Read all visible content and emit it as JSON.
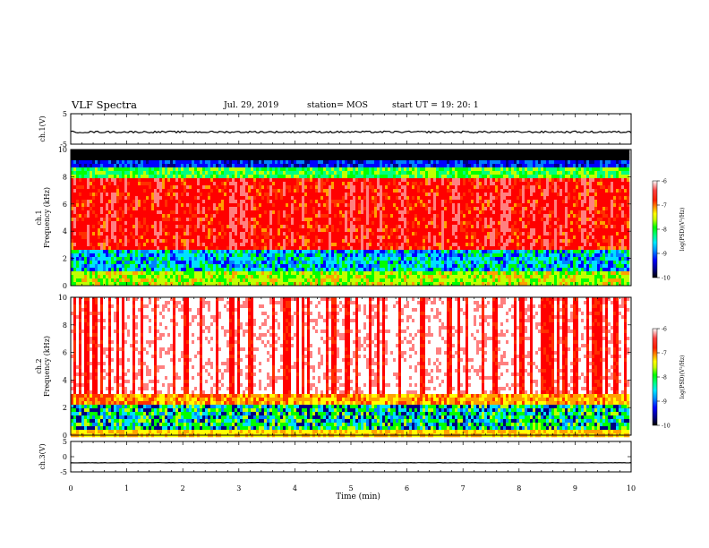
{
  "header": {
    "title": "VLF Spectra",
    "date": "Jul. 29, 2019",
    "station": "station= MOS",
    "start": "start UT =   19: 20: 1"
  },
  "colors": {
    "cmap": [
      "#000000",
      "#00007f",
      "#0000ff",
      "#0080ff",
      "#00e0ff",
      "#00ff80",
      "#00ff00",
      "#c0ff00",
      "#ffff00",
      "#ffa000",
      "#ff3000",
      "#ff0000",
      "#ff8080",
      "#ffffff"
    ]
  },
  "chart_data": [
    {
      "type": "line",
      "panel": "ch1-waveform",
      "ylabel": "ch.1(V)",
      "ylim": [
        -5,
        5
      ],
      "yticks": [
        "5",
        "-5"
      ],
      "series": [
        {
          "y_approx_constant": -1.0
        }
      ]
    },
    {
      "type": "heatmap",
      "panel": "ch1-spectrogram",
      "ylabel": "ch.1\nFrequency (kHz)",
      "ylim": [
        0,
        10
      ],
      "yticks": [
        "0",
        "2",
        "4",
        "6",
        "8",
        "10"
      ],
      "description_levels_kHz": {
        "black_band_above": 9.2,
        "red_band": [
          2.5,
          8.0
        ],
        "green_band_below": 2.5
      },
      "colorbar": {
        "label": "log(PSD)(V^2/Hz)",
        "ticks": [
          "-6",
          "-7",
          "-8",
          "-9",
          "-10"
        ],
        "range": [
          -10,
          -6
        ]
      }
    },
    {
      "type": "heatmap",
      "panel": "ch2-spectrogram",
      "ylabel": "ch.2\nFrequency (kHz)",
      "ylim": [
        0,
        10
      ],
      "yticks": [
        "0",
        "2",
        "4",
        "6",
        "8",
        "10"
      ],
      "description_levels_kHz": {
        "white_band_above": 3.0,
        "green_band_below": 3.0
      },
      "colorbar": {
        "label": "log(PSD)(V^2/Hz)",
        "ticks": [
          "-6",
          "-7",
          "-8",
          "-9",
          "-10"
        ],
        "range": [
          -10,
          -6
        ]
      }
    },
    {
      "type": "line",
      "panel": "ch3-waveform",
      "ylabel": "ch.3(V)",
      "ylim": [
        -5,
        5
      ],
      "yticks": [
        "5",
        "0",
        "-5"
      ],
      "series": [
        {
          "y_approx_constant": -2.0
        }
      ]
    }
  ],
  "xaxis": {
    "xlabel": "Time (min)",
    "xlim": [
      0,
      10
    ],
    "ticks": [
      "0",
      "1",
      "2",
      "3",
      "4",
      "5",
      "6",
      "7",
      "8",
      "9",
      "10"
    ]
  },
  "colorbar_text": {
    "label": "log(PSD)(V²/Hz)",
    "ticks": [
      "-6",
      "-7",
      "-8",
      "-9",
      "-10"
    ]
  }
}
